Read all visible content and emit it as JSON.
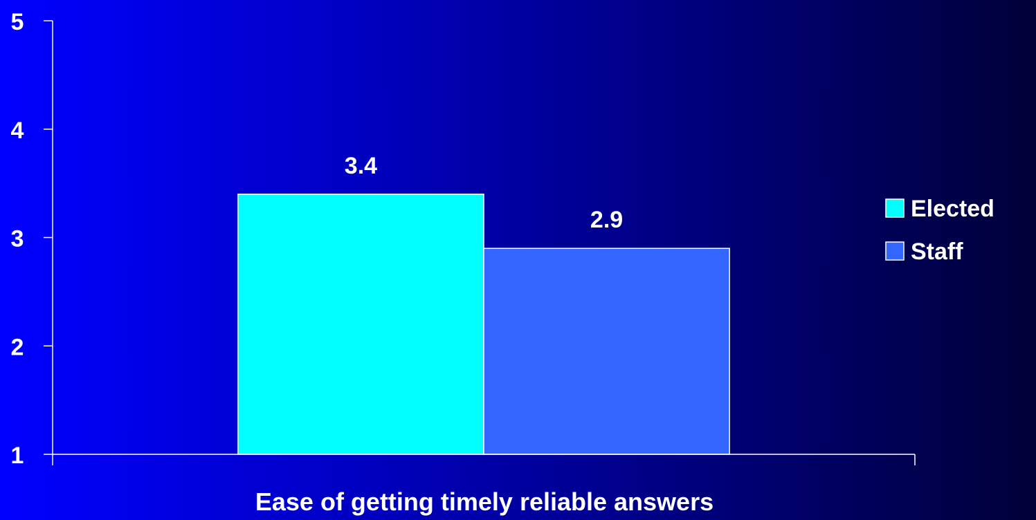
{
  "chart_data": {
    "type": "bar",
    "categories": [
      ""
    ],
    "series": [
      {
        "name": "Elected",
        "values": [
          3.4
        ],
        "color": "#00ffff"
      },
      {
        "name": "Staff",
        "values": [
          2.9
        ],
        "color": "#3366ff"
      }
    ],
    "data_labels": [
      "3.4",
      "2.9"
    ],
    "xlabel": "Ease of getting timely reliable answers",
    "ylabel": "",
    "ylim": [
      1,
      5
    ],
    "yticks": [
      1,
      2,
      3,
      4,
      5
    ],
    "grid": false,
    "legend_position": "right",
    "axis_color": "#ffffff",
    "background_colors": [
      "#0000ff",
      "#000038"
    ]
  }
}
